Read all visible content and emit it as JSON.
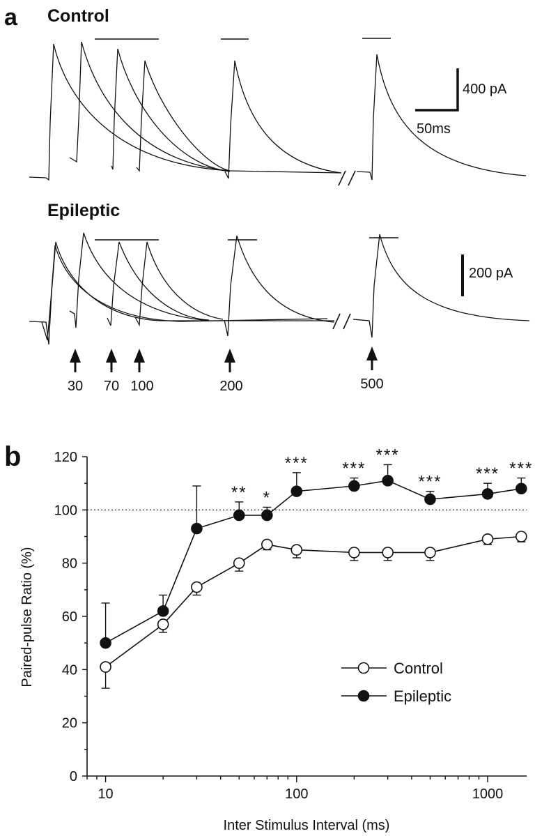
{
  "panel_a": {
    "letter": "a",
    "control": {
      "title": "Control",
      "scale_y": "400 pA",
      "scale_x": "50ms"
    },
    "epileptic": {
      "title": "Epileptic",
      "scale_y": "200 pA"
    },
    "intervals": [
      "30",
      "70",
      "100",
      "200",
      "500"
    ]
  },
  "panel_b": {
    "letter": "b"
  },
  "chart_data": {
    "type": "line",
    "xlabel": "Inter Stimulus Interval (ms)",
    "ylabel": "Paired-pulse Ratio (%)",
    "x_scale": "log",
    "xlim": [
      8,
      1600
    ],
    "ylim": [
      0,
      120
    ],
    "x_ticks": [
      "10",
      "100",
      "1000"
    ],
    "y_ticks": [
      "0",
      "20",
      "40",
      "60",
      "80",
      "100",
      "120"
    ],
    "reference_line": 100,
    "legend_placement": "lower-right",
    "series": [
      {
        "name": "Control",
        "marker": "open-circle",
        "x": [
          10,
          20,
          30,
          50,
          70,
          100,
          200,
          300,
          500,
          1000,
          1500
        ],
        "y": [
          41,
          57,
          71,
          80,
          87,
          85,
          84,
          84,
          84,
          89,
          90
        ],
        "err": [
          8,
          3,
          3,
          3,
          2,
          3,
          3,
          3,
          3,
          2,
          2
        ]
      },
      {
        "name": "Epileptic",
        "marker": "filled-circle",
        "x": [
          10,
          20,
          30,
          50,
          70,
          100,
          200,
          300,
          500,
          1000,
          1500
        ],
        "y": [
          50,
          62,
          93,
          98,
          98,
          107,
          109,
          111,
          104,
          106,
          108
        ],
        "err": [
          15,
          6,
          16,
          5,
          3,
          7,
          3,
          6,
          3,
          4,
          4
        ]
      }
    ],
    "annotations": [
      {
        "x": 50,
        "text": "**"
      },
      {
        "x": 70,
        "text": "*"
      },
      {
        "x": 100,
        "text": "***"
      },
      {
        "x": 200,
        "text": "***"
      },
      {
        "x": 300,
        "text": "***"
      },
      {
        "x": 500,
        "text": "***"
      },
      {
        "x": 1000,
        "text": "***"
      },
      {
        "x": 1500,
        "text": "***"
      }
    ]
  }
}
